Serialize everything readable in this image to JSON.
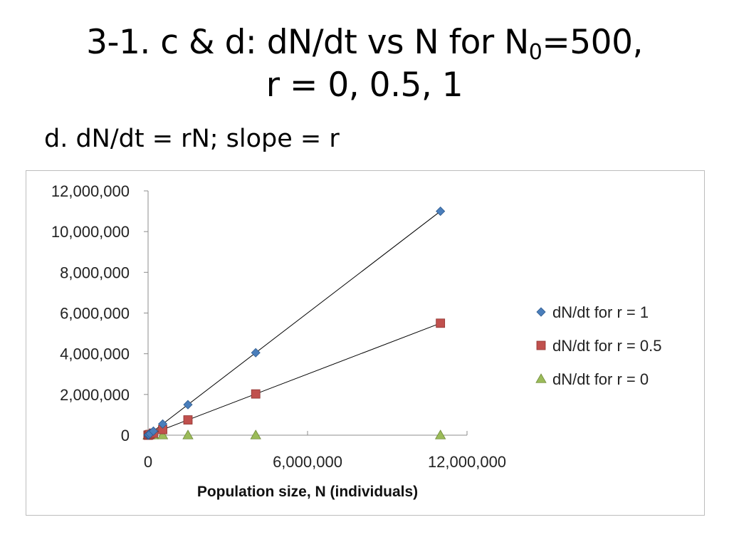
{
  "slide": {
    "title_line1_prefix": "3-1. c & d: dN/dt vs N for N",
    "title_line1_sub": "0",
    "title_line1_suffix": "=500,",
    "title_line2": "r = 0, 0.5, 1",
    "bullet": "d. dN/dt = rN; slope = r"
  },
  "chart_data": {
    "type": "scatter",
    "title": "",
    "xlabel": "Population size, N (individuals)",
    "ylabel": "",
    "xlim": [
      0,
      12000000
    ],
    "ylim": [
      0,
      12000000
    ],
    "x_ticks": [
      0,
      6000000,
      12000000
    ],
    "x_tick_labels": [
      "0",
      "6,000,000",
      "12,000,000"
    ],
    "y_ticks": [
      0,
      2000000,
      4000000,
      6000000,
      8000000,
      10000000,
      12000000
    ],
    "y_tick_labels": [
      "0",
      "2,000,000",
      "4,000,000",
      "6,000,000",
      "8,000,000",
      "10,000,000",
      "12,000,000"
    ],
    "grid": false,
    "legend_position": "right",
    "series": [
      {
        "name": "dN/dt for r = 1",
        "color": "#4a7ebb",
        "marker": "diamond",
        "trendline": true,
        "points": [
          [
            500,
            500
          ],
          [
            1400,
            1400
          ],
          [
            3700,
            3700
          ],
          [
            10000,
            10000
          ],
          [
            27000,
            27000
          ],
          [
            73000,
            73000
          ],
          [
            200000,
            200000
          ],
          [
            550000,
            550000
          ],
          [
            1500000,
            1500000
          ],
          [
            4050000,
            4050000
          ],
          [
            11000000,
            11000000
          ]
        ]
      },
      {
        "name": "dN/dt for r = 0.5",
        "color": "#c0504d",
        "marker": "square",
        "trendline": true,
        "points": [
          [
            500,
            250
          ],
          [
            1400,
            700
          ],
          [
            3700,
            1850
          ],
          [
            10000,
            5000
          ],
          [
            27000,
            13500
          ],
          [
            73000,
            36500
          ],
          [
            200000,
            100000
          ],
          [
            550000,
            275000
          ],
          [
            1500000,
            750000
          ],
          [
            4050000,
            2025000
          ],
          [
            11000000,
            5500000
          ]
        ]
      },
      {
        "name": "dN/dt for r = 0",
        "color": "#9bbb59",
        "marker": "triangle",
        "trendline": false,
        "points": [
          [
            500,
            0
          ],
          [
            1400,
            0
          ],
          [
            3700,
            0
          ],
          [
            10000,
            0
          ],
          [
            27000,
            0
          ],
          [
            73000,
            0
          ],
          [
            200000,
            0
          ],
          [
            550000,
            0
          ],
          [
            1500000,
            0
          ],
          [
            4050000,
            0
          ],
          [
            11000000,
            0
          ]
        ]
      }
    ]
  }
}
